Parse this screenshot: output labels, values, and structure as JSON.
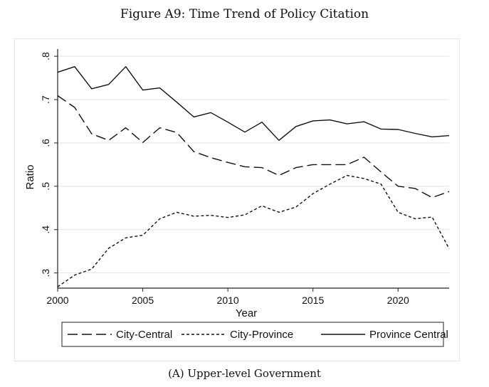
{
  "figure_title": "Figure A9: Time Trend of Policy Citation",
  "caption": "(A) Upper-level Government",
  "chart_data": {
    "type": "line",
    "title": "",
    "xlabel": "Year",
    "ylabel": "Ratio",
    "xlim": [
      2000,
      2023
    ],
    "ylim": [
      0.265,
      0.81
    ],
    "x_ticks": [
      2000,
      2005,
      2010,
      2015,
      2020
    ],
    "y_ticks": [
      0.3,
      0.4,
      0.5,
      0.6,
      0.7,
      0.8
    ],
    "y_tick_labels": [
      ".3",
      ".4",
      ".5",
      ".6",
      ".7",
      ".8"
    ],
    "grid": "horizontal",
    "legend_position": "bottom",
    "x": [
      2000,
      2001,
      2002,
      2003,
      2004,
      2005,
      2006,
      2007,
      2008,
      2009,
      2010,
      2011,
      2012,
      2013,
      2014,
      2015,
      2016,
      2017,
      2018,
      2019,
      2020,
      2021,
      2022,
      2023
    ],
    "series": [
      {
        "name": "City-Central",
        "dash": "long-dash",
        "values": [
          0.709,
          0.682,
          0.621,
          0.606,
          0.635,
          0.601,
          0.635,
          0.624,
          0.58,
          0.566,
          0.555,
          0.545,
          0.543,
          0.525,
          0.543,
          0.55,
          0.55,
          0.55,
          0.567,
          0.533,
          0.5,
          0.495,
          0.474,
          0.488
        ]
      },
      {
        "name": "City-Province",
        "dash": "short-dash",
        "values": [
          0.268,
          0.295,
          0.309,
          0.357,
          0.381,
          0.387,
          0.425,
          0.44,
          0.431,
          0.433,
          0.428,
          0.434,
          0.455,
          0.44,
          0.452,
          0.483,
          0.505,
          0.525,
          0.518,
          0.505,
          0.44,
          0.425,
          0.429,
          0.356
        ]
      },
      {
        "name": "Province Central",
        "dash": "solid",
        "values": [
          0.763,
          0.776,
          0.725,
          0.735,
          0.776,
          0.722,
          0.727,
          0.694,
          0.66,
          0.67,
          0.648,
          0.625,
          0.648,
          0.606,
          0.638,
          0.651,
          0.653,
          0.644,
          0.649,
          0.632,
          0.631,
          0.622,
          0.614,
          0.617
        ]
      }
    ]
  }
}
